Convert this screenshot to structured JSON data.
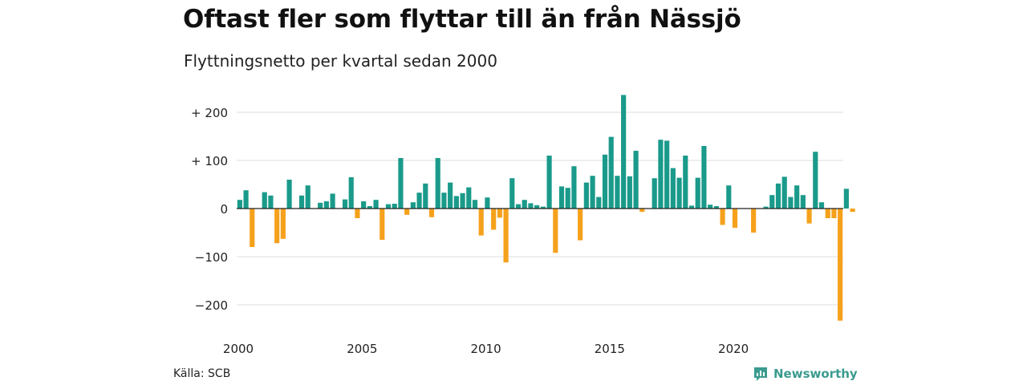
{
  "title": "Oftast fler som flyttar till än från Nässjö",
  "subtitle": "Flyttningsnetto per kvartal sedan 2000",
  "source": "Källa: SCB",
  "brand": "Newsworthy",
  "colors": {
    "positive": "#1a9a8a",
    "negative": "#f5a11c",
    "grid": "#dddddd",
    "axis": "#222222",
    "brand": "#3a9b8e"
  },
  "chart_data": {
    "type": "bar",
    "x_start": 2000,
    "x_step": 0.25,
    "xlim": [
      2000,
      2024.5
    ],
    "ylim": [
      -235,
      240
    ],
    "y_ticks": [
      200,
      100,
      0,
      -100,
      -200
    ],
    "y_tick_labels": [
      "+ 200",
      "+ 100",
      "0",
      "−100",
      "−200"
    ],
    "x_ticks": [
      2000,
      2005,
      2010,
      2015,
      2020
    ],
    "x_tick_labels": [
      "2000",
      "2005",
      "2010",
      "2015",
      "2020"
    ],
    "grid": true,
    "values": [
      18,
      38,
      -80,
      0,
      34,
      27,
      -72,
      -63,
      60,
      0,
      27,
      48,
      0,
      12,
      15,
      31,
      0,
      19,
      65,
      -20,
      15,
      5,
      18,
      -65,
      9,
      10,
      105,
      -13,
      13,
      33,
      52,
      -18,
      105,
      33,
      54,
      26,
      32,
      44,
      18,
      -56,
      23,
      -44,
      -19,
      -112,
      63,
      9,
      18,
      11,
      7,
      4,
      110,
      -92,
      46,
      43,
      88,
      -66,
      54,
      68,
      24,
      112,
      149,
      68,
      236,
      67,
      120,
      -7,
      0,
      63,
      143,
      141,
      84,
      64,
      110,
      6,
      64,
      130,
      8,
      5,
      -34,
      48,
      -40,
      0,
      0,
      -50,
      0,
      4,
      28,
      52,
      66,
      24,
      48,
      28,
      -31,
      118,
      13,
      -20,
      -20,
      -233,
      41,
      -7
    ]
  }
}
